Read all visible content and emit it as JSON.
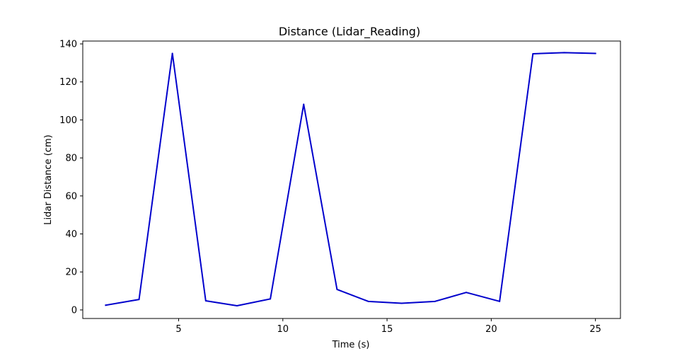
{
  "chart_data": {
    "type": "line",
    "title": "Distance (Lidar_Reading)",
    "xlabel": "Time (s)",
    "ylabel": "Lidar Distance (cm)",
    "xlim": [
      0.4,
      26.2
    ],
    "ylim": [
      -4.5,
      141.5
    ],
    "xticks": [
      5,
      10,
      15,
      20,
      25
    ],
    "yticks": [
      0,
      20,
      40,
      60,
      80,
      100,
      120,
      140
    ],
    "grid": false,
    "legend": "none",
    "series": [
      {
        "color": "#0000cc",
        "x": [
          1.5,
          3.1,
          4.7,
          6.3,
          7.8,
          9.4,
          11.0,
          12.6,
          14.1,
          15.7,
          17.3,
          18.8,
          20.4,
          22.0,
          23.5,
          25.0
        ],
        "y": [
          2.5,
          5.5,
          135.0,
          4.8,
          2.2,
          5.8,
          108.2,
          10.8,
          4.5,
          3.5,
          4.5,
          9.2,
          4.5,
          134.8,
          135.4,
          135.0
        ]
      }
    ]
  }
}
